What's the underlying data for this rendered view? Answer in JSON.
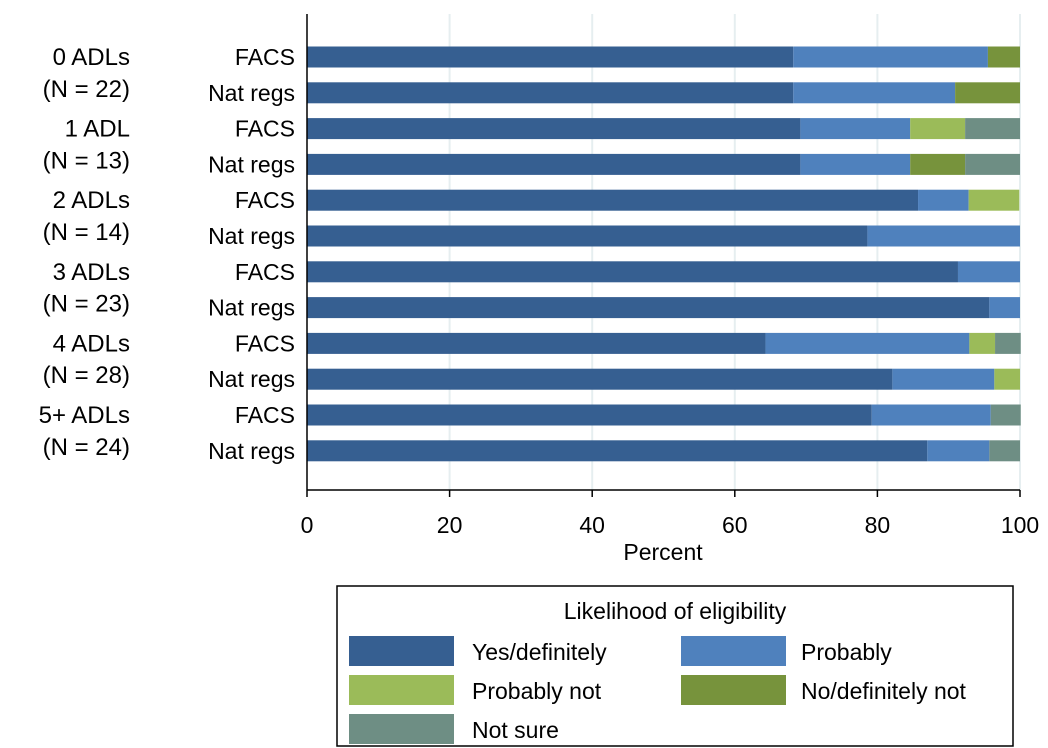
{
  "chart_data": {
    "type": "bar",
    "orientation": "horizontal",
    "stacked": true,
    "xlabel": "Percent",
    "xlim": [
      0,
      100
    ],
    "xticks": [
      0,
      20,
      40,
      60,
      80,
      100
    ],
    "grid": true,
    "groups": [
      {
        "label": "0 ADLs",
        "n_label": "(N = 22)"
      },
      {
        "label": "1 ADL",
        "n_label": "(N = 13)"
      },
      {
        "label": "2 ADLs",
        "n_label": "(N = 14)"
      },
      {
        "label": "3 ADLs",
        "n_label": "(N = 23)"
      },
      {
        "label": "4 ADLs",
        "n_label": "(N = 28)"
      },
      {
        "label": "5+ ADLs",
        "n_label": "(N = 24)"
      }
    ],
    "rows": [
      {
        "group": 0,
        "label": "FACS",
        "values": [
          68.2,
          27.3,
          0,
          4.5,
          0
        ]
      },
      {
        "group": 0,
        "label": "Nat regs",
        "values": [
          68.2,
          22.7,
          0,
          9.1,
          0
        ]
      },
      {
        "group": 1,
        "label": "FACS",
        "values": [
          69.2,
          15.4,
          7.7,
          0,
          7.7
        ]
      },
      {
        "group": 1,
        "label": "Nat regs",
        "values": [
          69.2,
          15.4,
          0,
          7.7,
          7.7
        ]
      },
      {
        "group": 2,
        "label": "FACS",
        "values": [
          85.7,
          7.1,
          7.1,
          0,
          0
        ]
      },
      {
        "group": 2,
        "label": "Nat regs",
        "values": [
          78.6,
          21.4,
          0,
          0,
          0
        ]
      },
      {
        "group": 3,
        "label": "FACS",
        "values": [
          91.3,
          8.7,
          0,
          0,
          0
        ]
      },
      {
        "group": 3,
        "label": "Nat regs",
        "values": [
          95.7,
          4.3,
          0,
          0,
          0
        ]
      },
      {
        "group": 4,
        "label": "FACS",
        "values": [
          64.3,
          28.6,
          3.6,
          0,
          3.6
        ]
      },
      {
        "group": 4,
        "label": "Nat regs",
        "values": [
          82.1,
          14.3,
          3.6,
          0,
          0
        ]
      },
      {
        "group": 5,
        "label": "FACS",
        "values": [
          79.2,
          16.7,
          0,
          0,
          4.2
        ]
      },
      {
        "group": 5,
        "label": "Nat regs",
        "values": [
          87.0,
          8.7,
          0,
          0,
          4.3
        ]
      }
    ],
    "series": [
      {
        "name": "Yes/definitely",
        "color": "#365f91"
      },
      {
        "name": "Probably",
        "color": "#4f81bd"
      },
      {
        "name": "Probably not",
        "color": "#9bbb59"
      },
      {
        "name": "No/definitely not",
        "color": "#77933c"
      },
      {
        "name": "Not sure",
        "color": "#6e8e84"
      }
    ],
    "legend": {
      "title": "Likelihood of eligibility",
      "placement": "bottom"
    },
    "grid_color": "#e6eef0",
    "axis_color": "#000000"
  }
}
